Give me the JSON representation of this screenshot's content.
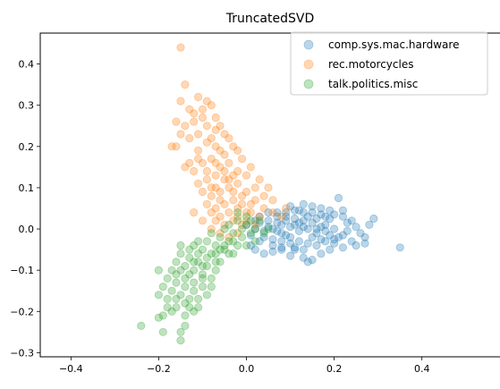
{
  "chart_data": {
    "type": "scatter",
    "title": "TruncatedSVD",
    "xlabel": "",
    "ylabel": "",
    "xlim": [
      -0.47,
      0.58
    ],
    "ylim": [
      -0.31,
      0.475
    ],
    "x_ticks": [
      -0.4,
      -0.2,
      0.0,
      0.2,
      0.4
    ],
    "x_tick_labels": [
      "−0.4",
      "−0.2",
      "0.0",
      "0.2",
      "0.4"
    ],
    "y_ticks": [
      -0.3,
      -0.2,
      -0.1,
      0.0,
      0.1,
      0.2,
      0.3,
      0.4
    ],
    "y_tick_labels": [
      "−0.3",
      "−0.2",
      "−0.1",
      "0.0",
      "0.1",
      "0.2",
      "0.3",
      "0.4"
    ],
    "grid": false,
    "legend_position": "top-right",
    "marker_alpha": 0.3,
    "series": [
      {
        "name": "comp.sys.mac.hardware",
        "color": "#1f77b4",
        "points": [
          [
            0.35,
            -0.045
          ],
          [
            0.27,
            -0.035
          ],
          [
            0.25,
            -0.04
          ],
          [
            0.21,
            0.075
          ],
          [
            0.29,
            0.025
          ],
          [
            0.28,
            0.01
          ],
          [
            0.22,
            0.045
          ],
          [
            0.19,
            0.025
          ],
          [
            0.17,
            0.035
          ],
          [
            0.15,
            0.04
          ],
          [
            0.13,
            0.04
          ],
          [
            0.11,
            0.045
          ],
          [
            0.09,
            0.04
          ],
          [
            0.07,
            0.04
          ],
          [
            0.05,
            0.04
          ],
          [
            0.03,
            0.03
          ],
          [
            0.06,
            -0.055
          ],
          [
            0.08,
            -0.05
          ],
          [
            0.11,
            -0.05
          ],
          [
            0.13,
            -0.07
          ],
          [
            0.15,
            -0.075
          ],
          [
            0.17,
            -0.06
          ],
          [
            0.19,
            -0.05
          ],
          [
            0.22,
            -0.045
          ],
          [
            0.24,
            -0.03
          ],
          [
            0.14,
            -0.08
          ],
          [
            0.04,
            -0.06
          ],
          [
            0.02,
            -0.05
          ],
          [
            0.01,
            -0.04
          ],
          [
            0.1,
            -0.065
          ],
          [
            0.26,
            -0.01
          ],
          [
            0.24,
            0.02
          ],
          [
            0.2,
            0.0
          ],
          [
            0.18,
            0.01
          ],
          [
            0.16,
            -0.01
          ],
          [
            0.14,
            0.0
          ],
          [
            0.12,
            -0.005
          ],
          [
            0.1,
            0.005
          ],
          [
            0.08,
            -0.01
          ],
          [
            0.06,
            0.0
          ],
          [
            0.04,
            -0.005
          ],
          [
            0.02,
            0.0
          ],
          [
            0.0,
            0.01
          ],
          [
            0.03,
            0.015
          ],
          [
            0.05,
            0.02
          ],
          [
            0.07,
            0.015
          ],
          [
            0.09,
            0.02
          ],
          [
            0.11,
            0.025
          ],
          [
            0.13,
            0.02
          ],
          [
            0.15,
            0.015
          ],
          [
            0.17,
            0.005
          ],
          [
            0.19,
            -0.015
          ],
          [
            0.21,
            -0.02
          ],
          [
            0.23,
            -0.005
          ],
          [
            0.12,
            -0.03
          ],
          [
            0.1,
            -0.035
          ],
          [
            0.08,
            -0.03
          ],
          [
            0.06,
            -0.025
          ],
          [
            0.04,
            -0.02
          ],
          [
            0.14,
            -0.035
          ],
          [
            0.16,
            -0.04
          ],
          [
            0.18,
            -0.03
          ],
          [
            0.2,
            -0.025
          ],
          [
            0.22,
            -0.015
          ],
          [
            0.11,
            0.01
          ],
          [
            0.13,
            0.005
          ],
          [
            0.09,
            -0.015
          ],
          [
            0.07,
            -0.005
          ],
          [
            0.05,
            0.005
          ],
          [
            0.15,
            -0.02
          ],
          [
            0.17,
            -0.025
          ],
          [
            0.12,
            0.015
          ],
          [
            0.1,
            -0.02
          ],
          [
            0.08,
            0.01
          ],
          [
            0.16,
            0.025
          ],
          [
            0.18,
            0.03
          ],
          [
            0.2,
            0.035
          ],
          [
            0.22,
            0.03
          ],
          [
            0.02,
            0.02
          ],
          [
            0.01,
            -0.015
          ],
          [
            0.03,
            -0.03
          ],
          [
            0.25,
            0.005
          ],
          [
            0.27,
            -0.02
          ],
          [
            0.23,
            0.015
          ],
          [
            0.13,
            -0.05
          ],
          [
            0.11,
            -0.045
          ],
          [
            0.09,
            0.03
          ],
          [
            0.07,
            0.03
          ],
          [
            0.19,
            0.045
          ],
          [
            0.17,
            0.05
          ],
          [
            0.15,
            0.055
          ],
          [
            0.13,
            0.06
          ],
          [
            0.1,
            0.055
          ],
          [
            0.12,
            0.045
          ],
          [
            0.14,
            0.03
          ],
          [
            0.16,
            0.0
          ],
          [
            0.18,
            -0.005
          ],
          [
            0.2,
            -0.035
          ],
          [
            0.06,
            -0.04
          ],
          [
            0.08,
            -0.045
          ]
        ]
      },
      {
        "name": "rec.motorcycles",
        "color": "#ff7f0e",
        "points": [
          [
            -0.15,
            0.44
          ],
          [
            -0.14,
            0.35
          ],
          [
            -0.15,
            0.31
          ],
          [
            -0.13,
            0.29
          ],
          [
            -0.11,
            0.32
          ],
          [
            -0.09,
            0.31
          ],
          [
            -0.08,
            0.3
          ],
          [
            -0.1,
            0.27
          ],
          [
            -0.12,
            0.26
          ],
          [
            -0.14,
            0.25
          ],
          [
            -0.16,
            0.26
          ],
          [
            -0.17,
            0.2
          ],
          [
            -0.13,
            0.22
          ],
          [
            -0.11,
            0.23
          ],
          [
            -0.09,
            0.25
          ],
          [
            -0.07,
            0.24
          ],
          [
            -0.06,
            0.25
          ],
          [
            -0.04,
            0.22
          ],
          [
            -0.03,
            0.2
          ],
          [
            -0.02,
            0.19
          ],
          [
            -0.05,
            0.18
          ],
          [
            -0.07,
            0.2
          ],
          [
            -0.09,
            0.21
          ],
          [
            -0.11,
            0.19
          ],
          [
            -0.13,
            0.16
          ],
          [
            -0.14,
            0.15
          ],
          [
            -0.12,
            0.14
          ],
          [
            -0.1,
            0.16
          ],
          [
            -0.08,
            0.17
          ],
          [
            -0.06,
            0.15
          ],
          [
            -0.04,
            0.16
          ],
          [
            -0.02,
            0.14
          ],
          [
            0.0,
            0.13
          ],
          [
            0.02,
            0.1
          ],
          [
            0.04,
            0.08
          ],
          [
            0.06,
            0.07
          ],
          [
            0.09,
            0.05
          ],
          [
            0.05,
            0.1
          ],
          [
            0.03,
            0.12
          ],
          [
            0.01,
            0.15
          ],
          [
            -0.01,
            0.17
          ],
          [
            -0.03,
            0.13
          ],
          [
            -0.05,
            0.12
          ],
          [
            -0.07,
            0.13
          ],
          [
            -0.09,
            0.12
          ],
          [
            -0.11,
            0.11
          ],
          [
            -0.1,
            0.09
          ],
          [
            -0.08,
            0.08
          ],
          [
            -0.06,
            0.09
          ],
          [
            -0.04,
            0.1
          ],
          [
            -0.02,
            0.11
          ],
          [
            0.0,
            0.09
          ],
          [
            0.02,
            0.07
          ],
          [
            0.04,
            0.05
          ],
          [
            0.06,
            0.04
          ],
          [
            0.08,
            0.03
          ],
          [
            0.03,
            0.03
          ],
          [
            0.01,
            0.04
          ],
          [
            -0.01,
            0.06
          ],
          [
            -0.03,
            0.07
          ],
          [
            -0.05,
            0.06
          ],
          [
            -0.07,
            0.05
          ],
          [
            -0.09,
            0.06
          ],
          [
            -0.08,
            0.04
          ],
          [
            -0.06,
            0.03
          ],
          [
            -0.04,
            0.04
          ],
          [
            -0.02,
            0.03
          ],
          [
            0.0,
            0.02
          ],
          [
            0.02,
            0.01
          ],
          [
            -0.01,
            0.01
          ],
          [
            -0.03,
            0.02
          ],
          [
            -0.05,
            0.01
          ],
          [
            -0.07,
            0.02
          ],
          [
            -0.06,
            -0.01
          ],
          [
            -0.04,
            -0.02
          ],
          [
            -0.02,
            -0.01
          ],
          [
            -0.08,
            0.0
          ],
          [
            -0.1,
            0.02
          ],
          [
            -0.12,
            0.04
          ],
          [
            -0.07,
            0.1
          ],
          [
            -0.05,
            0.14
          ],
          [
            -0.06,
            0.19
          ],
          [
            -0.08,
            0.22
          ],
          [
            -0.05,
            0.23
          ],
          [
            -0.12,
            0.28
          ],
          [
            -0.1,
            0.29
          ],
          [
            -0.07,
            0.27
          ],
          [
            -0.15,
            0.23
          ],
          [
            -0.16,
            0.2
          ],
          [
            -0.11,
            0.17
          ],
          [
            -0.03,
            0.09
          ],
          [
            -0.01,
            0.08
          ],
          [
            0.01,
            0.06
          ],
          [
            -0.09,
            0.14
          ],
          [
            -0.07,
            0.16
          ],
          [
            -0.04,
            0.12
          ],
          [
            -0.02,
            0.05
          ],
          [
            0.0,
            0.04
          ],
          [
            -0.06,
            0.07
          ],
          [
            -0.08,
            0.1
          ]
        ]
      },
      {
        "name": "talk.politics.misc",
        "color": "#2ca02c",
        "points": [
          [
            -0.24,
            -0.235
          ],
          [
            -0.2,
            -0.215
          ],
          [
            -0.19,
            -0.21
          ],
          [
            -0.19,
            -0.25
          ],
          [
            -0.15,
            -0.25
          ],
          [
            -0.15,
            -0.27
          ],
          [
            -0.14,
            -0.235
          ],
          [
            -0.17,
            -0.2
          ],
          [
            -0.18,
            -0.19
          ],
          [
            -0.16,
            -0.19
          ],
          [
            -0.14,
            -0.21
          ],
          [
            -0.12,
            -0.2
          ],
          [
            -0.13,
            -0.17
          ],
          [
            -0.15,
            -0.16
          ],
          [
            -0.17,
            -0.15
          ],
          [
            -0.19,
            -0.14
          ],
          [
            -0.16,
            -0.13
          ],
          [
            -0.14,
            -0.12
          ],
          [
            -0.12,
            -0.13
          ],
          [
            -0.1,
            -0.14
          ],
          [
            -0.11,
            -0.17
          ],
          [
            -0.09,
            -0.16
          ],
          [
            -0.08,
            -0.12
          ],
          [
            -0.1,
            -0.11
          ],
          [
            -0.12,
            -0.1
          ],
          [
            -0.14,
            -0.09
          ],
          [
            -0.16,
            -0.08
          ],
          [
            -0.15,
            -0.06
          ],
          [
            -0.13,
            -0.07
          ],
          [
            -0.11,
            -0.08
          ],
          [
            -0.09,
            -0.09
          ],
          [
            -0.07,
            -0.1
          ],
          [
            -0.06,
            -0.08
          ],
          [
            -0.08,
            -0.06
          ],
          [
            -0.1,
            -0.05
          ],
          [
            -0.12,
            -0.04
          ],
          [
            -0.09,
            -0.03
          ],
          [
            -0.07,
            -0.04
          ],
          [
            -0.05,
            -0.05
          ],
          [
            -0.03,
            -0.06
          ],
          [
            -0.04,
            -0.03
          ],
          [
            -0.06,
            -0.02
          ],
          [
            -0.08,
            -0.01
          ],
          [
            -0.05,
            0.0
          ],
          [
            -0.03,
            -0.01
          ],
          [
            -0.01,
            -0.02
          ],
          [
            0.0,
            -0.04
          ],
          [
            0.01,
            -0.01
          ],
          [
            0.02,
            0.0
          ],
          [
            0.0,
            0.01
          ],
          [
            -0.02,
            0.02
          ],
          [
            -0.04,
            0.01
          ],
          [
            0.03,
            0.02
          ],
          [
            0.04,
            -0.01
          ],
          [
            0.01,
            0.02
          ],
          [
            -0.01,
            0.0
          ],
          [
            -0.03,
            -0.03
          ],
          [
            -0.05,
            -0.04
          ],
          [
            -0.07,
            -0.06
          ],
          [
            -0.09,
            -0.07
          ],
          [
            -0.11,
            -0.06
          ],
          [
            -0.13,
            -0.05
          ],
          [
            -0.15,
            -0.04
          ],
          [
            -0.17,
            -0.1
          ],
          [
            -0.18,
            -0.12
          ],
          [
            -0.2,
            -0.1
          ],
          [
            -0.16,
            -0.11
          ],
          [
            -0.14,
            -0.14
          ],
          [
            -0.12,
            -0.15
          ],
          [
            -0.1,
            -0.12
          ],
          [
            -0.08,
            -0.14
          ],
          [
            -0.13,
            -0.19
          ],
          [
            -0.11,
            -0.19
          ],
          [
            -0.16,
            -0.17
          ],
          [
            -0.18,
            -0.17
          ],
          [
            -0.2,
            -0.16
          ],
          [
            -0.13,
            -0.11
          ],
          [
            -0.11,
            -0.03
          ],
          [
            -0.07,
            -0.08
          ],
          [
            -0.06,
            -0.05
          ],
          [
            -0.04,
            -0.06
          ],
          [
            -0.02,
            -0.04
          ],
          [
            0.02,
            -0.03
          ],
          [
            0.05,
            0.0
          ],
          [
            -0.02,
            0.04
          ],
          [
            0.0,
            0.03
          ],
          [
            -0.14,
            -0.18
          ],
          [
            -0.1,
            -0.09
          ],
          [
            -0.12,
            -0.08
          ],
          [
            -0.15,
            -0.1
          ]
        ]
      }
    ]
  }
}
